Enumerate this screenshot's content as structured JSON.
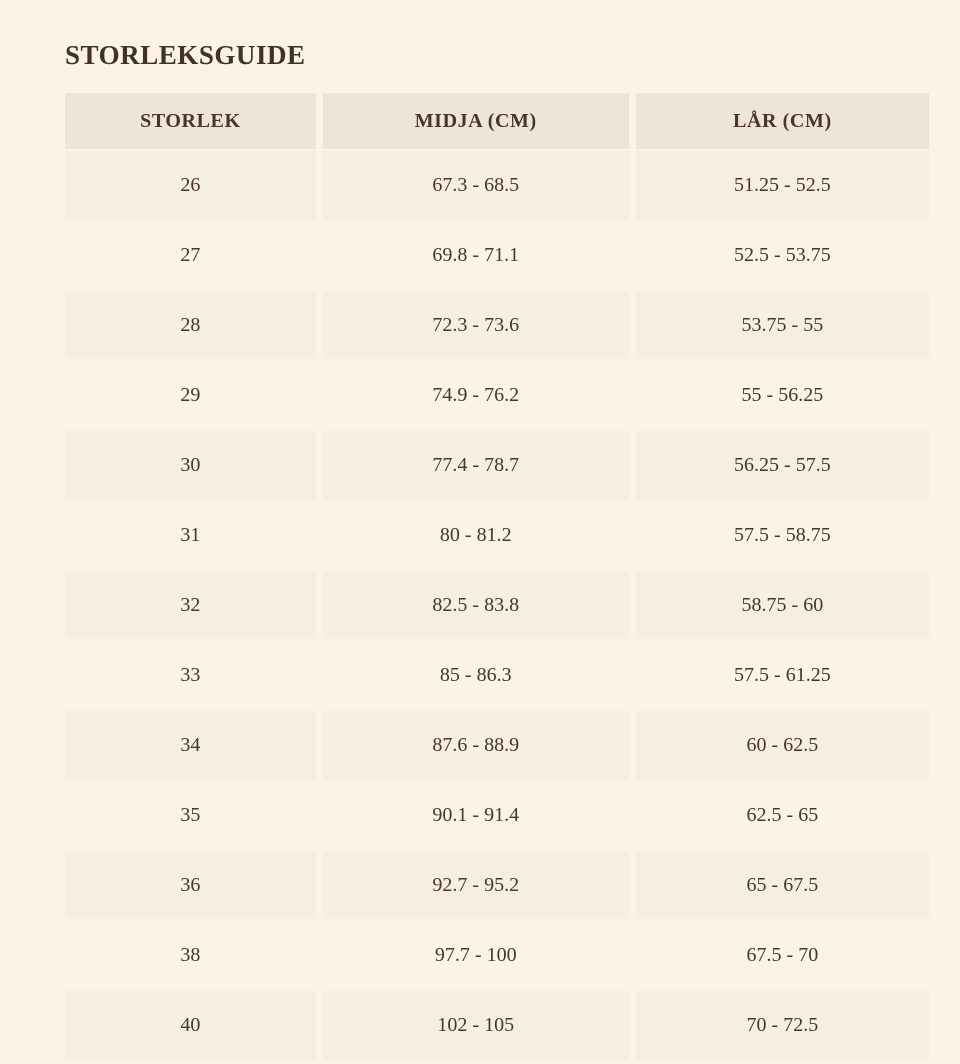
{
  "colors": {
    "page-bg": "#FBF3E3",
    "band-bg": "#F6EFE0",
    "header-bg": "#EDE6D8",
    "text-color": "#4A342B",
    "title-color": "#44302B"
  },
  "page": {
    "title": "STORLEKSGUIDE"
  },
  "size_guide": {
    "columns": {
      "size": "STORLEK",
      "waist": "MIDJA (CM)",
      "thigh": "LÅR (CM)"
    },
    "rows": [
      {
        "storlek": "26",
        "midja": "67.3 - 68.5",
        "lar": "51.25 - 52.5"
      },
      {
        "storlek": "27",
        "midja": "69.8 - 71.1",
        "lar": "52.5 - 53.75"
      },
      {
        "storlek": "28",
        "midja": "72.3 - 73.6",
        "lar": "53.75 - 55"
      },
      {
        "storlek": "29",
        "midja": "74.9 - 76.2",
        "lar": "55 - 56.25"
      },
      {
        "storlek": "30",
        "midja": "77.4 - 78.7",
        "lar": "56.25 - 57.5"
      },
      {
        "storlek": "31",
        "midja": "80 - 81.2",
        "lar": "57.5 - 58.75"
      },
      {
        "storlek": "32",
        "midja": "82.5 - 83.8",
        "lar": "58.75 - 60"
      },
      {
        "storlek": "33",
        "midja": "85 - 86.3",
        "lar": "57.5 - 61.25"
      },
      {
        "storlek": "34",
        "midja": "87.6 - 88.9",
        "lar": "60 - 62.5"
      },
      {
        "storlek": "35",
        "midja": "90.1 - 91.4",
        "lar": "62.5 - 65"
      },
      {
        "storlek": "36",
        "midja": "92.7 - 95.2",
        "lar": "65 - 67.5"
      },
      {
        "storlek": "38",
        "midja": "97.7 - 100",
        "lar": "67.5 - 70"
      },
      {
        "storlek": "40",
        "midja": "102 - 105",
        "lar": "70 - 72.5"
      }
    ]
  }
}
